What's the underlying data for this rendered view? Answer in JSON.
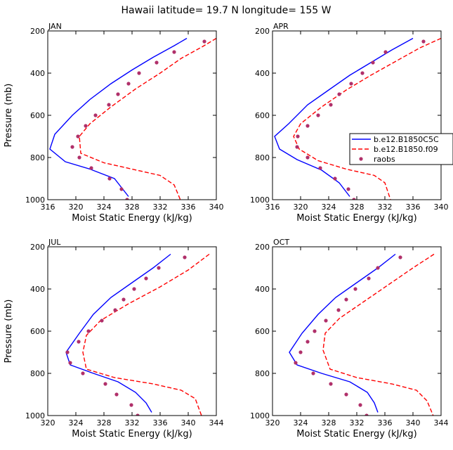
{
  "figure": {
    "title": "Hawaii   latitude= 19.7 N longitude= 155 W"
  },
  "legend": {
    "position": "right of APR panel",
    "entries": [
      {
        "label": "b.e12.B1850C5C",
        "style": "solid",
        "color": "#0000ff"
      },
      {
        "label": "b.e12.B1850.f09",
        "style": "dashed",
        "color": "#ff0000"
      },
      {
        "label": "raobs",
        "style": "dots",
        "color": "#b0306a"
      }
    ]
  },
  "chart_data": [
    {
      "type": "line",
      "panel": "JAN",
      "title": "JAN",
      "xlabel": "Moist Static Energy (kJ/kg)",
      "ylabel": "Pressure (mb)",
      "xlim": [
        316,
        340
      ],
      "ylim": [
        1000,
        200
      ],
      "xticks": [
        316,
        320,
        324,
        328,
        332,
        336,
        340
      ],
      "yticks": [
        200,
        400,
        600,
        800,
        1000
      ],
      "series": [
        {
          "name": "b.e12.B1850C5C",
          "points": [
            [
              335.8,
              235
            ],
            [
              334.0,
              270
            ],
            [
              331.0,
              325
            ],
            [
              328.0,
              385
            ],
            [
              325.0,
              450
            ],
            [
              322.0,
              525
            ],
            [
              319.5,
              600
            ],
            [
              317.0,
              690
            ],
            [
              316.3,
              760
            ],
            [
              318.5,
              820
            ],
            [
              322.0,
              855
            ],
            [
              325.5,
              900
            ],
            [
              327.5,
              985
            ]
          ]
        },
        {
          "name": "b.e12.B1850.f09",
          "points": [
            [
              340.0,
              235
            ],
            [
              338.0,
              275
            ],
            [
              335.0,
              330
            ],
            [
              332.0,
              400
            ],
            [
              328.5,
              475
            ],
            [
              325.0,
              560
            ],
            [
              322.0,
              640
            ],
            [
              320.5,
              700
            ],
            [
              320.7,
              780
            ],
            [
              324.0,
              825
            ],
            [
              328.0,
              855
            ],
            [
              332.0,
              885
            ],
            [
              334.0,
              930
            ],
            [
              335.0,
              1010
            ]
          ]
        },
        {
          "name": "raobs",
          "points": [
            [
              338.3,
              250
            ],
            [
              334.0,
              300
            ],
            [
              331.5,
              350
            ],
            [
              329.0,
              400
            ],
            [
              327.5,
              450
            ],
            [
              326.0,
              500
            ],
            [
              324.7,
              550
            ],
            [
              322.8,
              600
            ],
            [
              321.4,
              650
            ],
            [
              320.3,
              700
            ],
            [
              319.5,
              750
            ],
            [
              320.5,
              800
            ],
            [
              322.2,
              850
            ],
            [
              324.8,
              900
            ],
            [
              326.5,
              950
            ],
            [
              327.3,
              1000
            ]
          ]
        }
      ]
    },
    {
      "type": "line",
      "panel": "APR",
      "title": "APR",
      "xlabel": "Moist Static Energy (kJ/kg)",
      "ylabel": "",
      "xlim": [
        316,
        340
      ],
      "ylim": [
        1000,
        200
      ],
      "xticks": [
        316,
        320,
        324,
        328,
        332,
        336,
        340
      ],
      "yticks": [
        200,
        400,
        600,
        800,
        1000
      ],
      "series": [
        {
          "name": "b.e12.B1850C5C",
          "points": [
            [
              336.0,
              235
            ],
            [
              333.0,
              290
            ],
            [
              330.0,
              350
            ],
            [
              327.0,
              410
            ],
            [
              324.0,
              480
            ],
            [
              321.0,
              550
            ],
            [
              318.3,
              640
            ],
            [
              316.3,
              700
            ],
            [
              317.0,
              760
            ],
            [
              319.5,
              810
            ],
            [
              323.0,
              860
            ],
            [
              325.5,
              920
            ],
            [
              327.0,
              985
            ]
          ]
        },
        {
          "name": "b.e12.B1850.f09",
          "points": [
            [
              340.0,
              235
            ],
            [
              337.0,
              280
            ],
            [
              333.5,
              345
            ],
            [
              330.0,
              410
            ],
            [
              326.5,
              480
            ],
            [
              323.0,
              560
            ],
            [
              320.0,
              640
            ],
            [
              319.0,
              700
            ],
            [
              319.8,
              760
            ],
            [
              322.5,
              815
            ],
            [
              326.5,
              855
            ],
            [
              330.5,
              885
            ],
            [
              332.0,
              920
            ],
            [
              332.8,
              1000
            ]
          ]
        },
        {
          "name": "raobs",
          "points": [
            [
              337.5,
              250
            ],
            [
              332.1,
              300
            ],
            [
              330.3,
              350
            ],
            [
              328.8,
              400
            ],
            [
              327.2,
              450
            ],
            [
              325.5,
              500
            ],
            [
              324.3,
              550
            ],
            [
              322.5,
              600
            ],
            [
              321.0,
              650
            ],
            [
              319.6,
              700
            ],
            [
              319.5,
              750
            ],
            [
              321.0,
              800
            ],
            [
              322.8,
              850
            ],
            [
              324.9,
              900
            ],
            [
              326.8,
              950
            ],
            [
              327.6,
              1000
            ]
          ]
        }
      ]
    },
    {
      "type": "line",
      "panel": "JUL",
      "title": "JUL",
      "xlabel": "Moist Static Energy (kJ/kg)",
      "ylabel": "Pressure (mb)",
      "xlim": [
        320,
        344
      ],
      "ylim": [
        1000,
        200
      ],
      "xticks": [
        320,
        324,
        328,
        332,
        336,
        340,
        344
      ],
      "yticks": [
        200,
        400,
        600,
        800,
        1000
      ],
      "series": [
        {
          "name": "b.e12.B1850C5C",
          "points": [
            [
              337.5,
              235
            ],
            [
              335.0,
              300
            ],
            [
              332.0,
              370
            ],
            [
              329.0,
              440
            ],
            [
              326.5,
              520
            ],
            [
              324.5,
              610
            ],
            [
              322.6,
              700
            ],
            [
              323.2,
              760
            ],
            [
              326.5,
              800
            ],
            [
              330.0,
              840
            ],
            [
              332.5,
              890
            ],
            [
              334.0,
              940
            ],
            [
              334.8,
              985
            ]
          ]
        },
        {
          "name": "b.e12.B1850.f09",
          "points": [
            [
              343.0,
              235
            ],
            [
              340.0,
              310
            ],
            [
              336.0,
              390
            ],
            [
              331.5,
              470
            ],
            [
              327.5,
              550
            ],
            [
              325.5,
              620
            ],
            [
              325.0,
              700
            ],
            [
              325.5,
              780
            ],
            [
              329.5,
              820
            ],
            [
              335.0,
              850
            ],
            [
              339.0,
              880
            ],
            [
              341.0,
              920
            ],
            [
              342.0,
              1010
            ]
          ]
        },
        {
          "name": "raobs",
          "points": [
            [
              339.5,
              250
            ],
            [
              335.8,
              300
            ],
            [
              334.0,
              350
            ],
            [
              332.3,
              400
            ],
            [
              330.8,
              450
            ],
            [
              329.6,
              500
            ],
            [
              327.7,
              550
            ],
            [
              325.8,
              600
            ],
            [
              324.4,
              650
            ],
            [
              322.8,
              700
            ],
            [
              323.2,
              750
            ],
            [
              325.0,
              800
            ],
            [
              328.2,
              850
            ],
            [
              329.8,
              900
            ],
            [
              331.9,
              950
            ],
            [
              332.8,
              1000
            ]
          ]
        }
      ]
    },
    {
      "type": "line",
      "panel": "OCT",
      "title": "OCT",
      "xlabel": "Moist Static Energy (kJ/kg)",
      "ylabel": "",
      "xlim": [
        320,
        344
      ],
      "ylim": [
        1000,
        200
      ],
      "xticks": [
        320,
        324,
        328,
        332,
        336,
        340,
        344
      ],
      "yticks": [
        200,
        400,
        600,
        800,
        1000
      ],
      "series": [
        {
          "name": "b.e12.B1850C5C",
          "points": [
            [
              337.5,
              235
            ],
            [
              335.0,
              300
            ],
            [
              332.0,
              370
            ],
            [
              329.0,
              440
            ],
            [
              326.5,
              520
            ],
            [
              324.2,
              610
            ],
            [
              322.4,
              700
            ],
            [
              323.5,
              760
            ],
            [
              327.0,
              800
            ],
            [
              331.0,
              840
            ],
            [
              333.5,
              890
            ],
            [
              334.5,
              940
            ],
            [
              335.0,
              985
            ]
          ]
        },
        {
          "name": "b.e12.B1850.f09",
          "points": [
            [
              343.0,
              235
            ],
            [
              340.0,
              300
            ],
            [
              336.5,
              380
            ],
            [
              333.0,
              460
            ],
            [
              329.5,
              540
            ],
            [
              327.5,
              610
            ],
            [
              327.2,
              690
            ],
            [
              328.2,
              780
            ],
            [
              332.0,
              820
            ],
            [
              337.0,
              850
            ],
            [
              340.5,
              880
            ],
            [
              342.0,
              930
            ],
            [
              343.0,
              1010
            ]
          ]
        },
        {
          "name": "raobs",
          "points": [
            [
              338.2,
              250
            ],
            [
              335.0,
              300
            ],
            [
              333.7,
              350
            ],
            [
              331.8,
              400
            ],
            [
              330.5,
              450
            ],
            [
              329.4,
              500
            ],
            [
              327.6,
              550
            ],
            [
              326.0,
              600
            ],
            [
              325.0,
              650
            ],
            [
              324.0,
              700
            ],
            [
              323.3,
              750
            ],
            [
              325.8,
              800
            ],
            [
              328.3,
              850
            ],
            [
              330.5,
              900
            ],
            [
              332.5,
              950
            ],
            [
              333.4,
              1000
            ]
          ]
        }
      ]
    }
  ]
}
